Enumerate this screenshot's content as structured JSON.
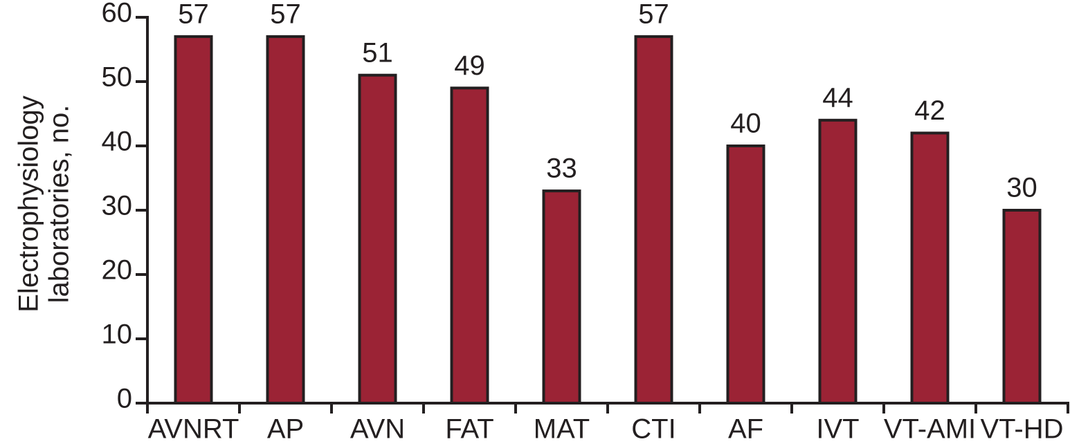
{
  "chart_data": {
    "type": "bar",
    "y_label": [
      "Electrophysiology",
      "laboratories, no."
    ],
    "categories": [
      "AVNRT",
      "AP",
      "AVN",
      "FAT",
      "MAT",
      "CTI",
      "AF",
      "IVT",
      "VT-AMI",
      "VT-HD"
    ],
    "values": [
      57,
      57,
      51,
      49,
      33,
      57,
      40,
      44,
      42,
      30
    ],
    "color": "#9b2335",
    "ylim": [
      0,
      60
    ],
    "yticks": [
      0,
      10,
      20,
      30,
      40,
      50,
      60
    ],
    "grid": false
  }
}
